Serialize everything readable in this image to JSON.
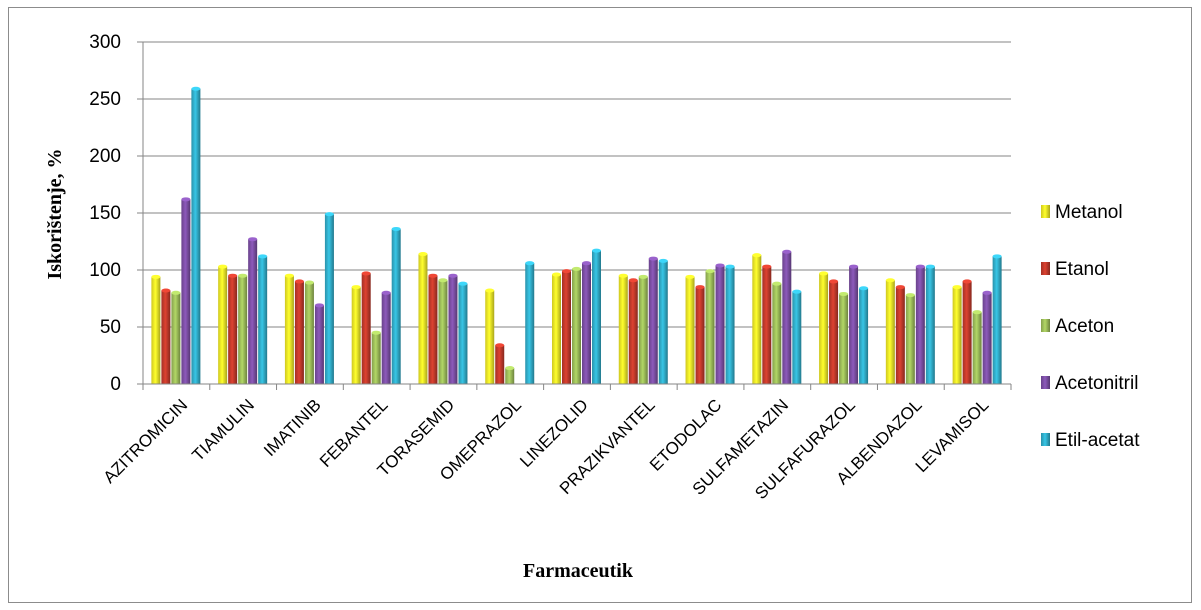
{
  "chart_data": {
    "type": "bar",
    "xlabel": "Farmaceutik",
    "ylabel": "Iskorištenje, %",
    "ylim": [
      0,
      300
    ],
    "yticks": [
      "0",
      "50",
      "100",
      "150",
      "200",
      "250",
      "300"
    ],
    "grid": true,
    "legend_position": "right",
    "categories": [
      "AZITROMICIN",
      "TIAMULIN",
      "IMATINIB",
      "FEBANTEL",
      "TORASEMID",
      "OMEPRAZOL",
      "LINEZOLID",
      "PRAZIKVANTEL",
      "ETODOLAC",
      "SULFAMETAZIN",
      "SULFAFURAZOL",
      "ALBENDAZOL",
      "LEVAMISOL"
    ],
    "series": [
      {
        "name": "Metanol",
        "color": "#f2ea27",
        "values": [
          94,
          103,
          95,
          85,
          114,
          82,
          96,
          95,
          94,
          113,
          97,
          91,
          85
        ]
      },
      {
        "name": "Etanol",
        "color": "#c0392b",
        "values": [
          82,
          95,
          90,
          97,
          95,
          34,
          99,
          91,
          85,
          103,
          90,
          85,
          90
        ]
      },
      {
        "name": "Aceton",
        "color": "#9bbb59",
        "values": [
          80,
          95,
          89,
          45,
          91,
          14,
          101,
          94,
          99,
          88,
          79,
          78,
          63
        ]
      },
      {
        "name": "Acetonitril",
        "color": "#7b4ea3",
        "values": [
          162,
          127,
          69,
          80,
          95,
          0,
          106,
          110,
          104,
          116,
          103,
          103,
          80
        ]
      },
      {
        "name": "Etil-acetat",
        "color": "#31acc8",
        "values": [
          259,
          112,
          149,
          136,
          88,
          106,
          117,
          108,
          103,
          81,
          84,
          103,
          112
        ]
      }
    ]
  }
}
